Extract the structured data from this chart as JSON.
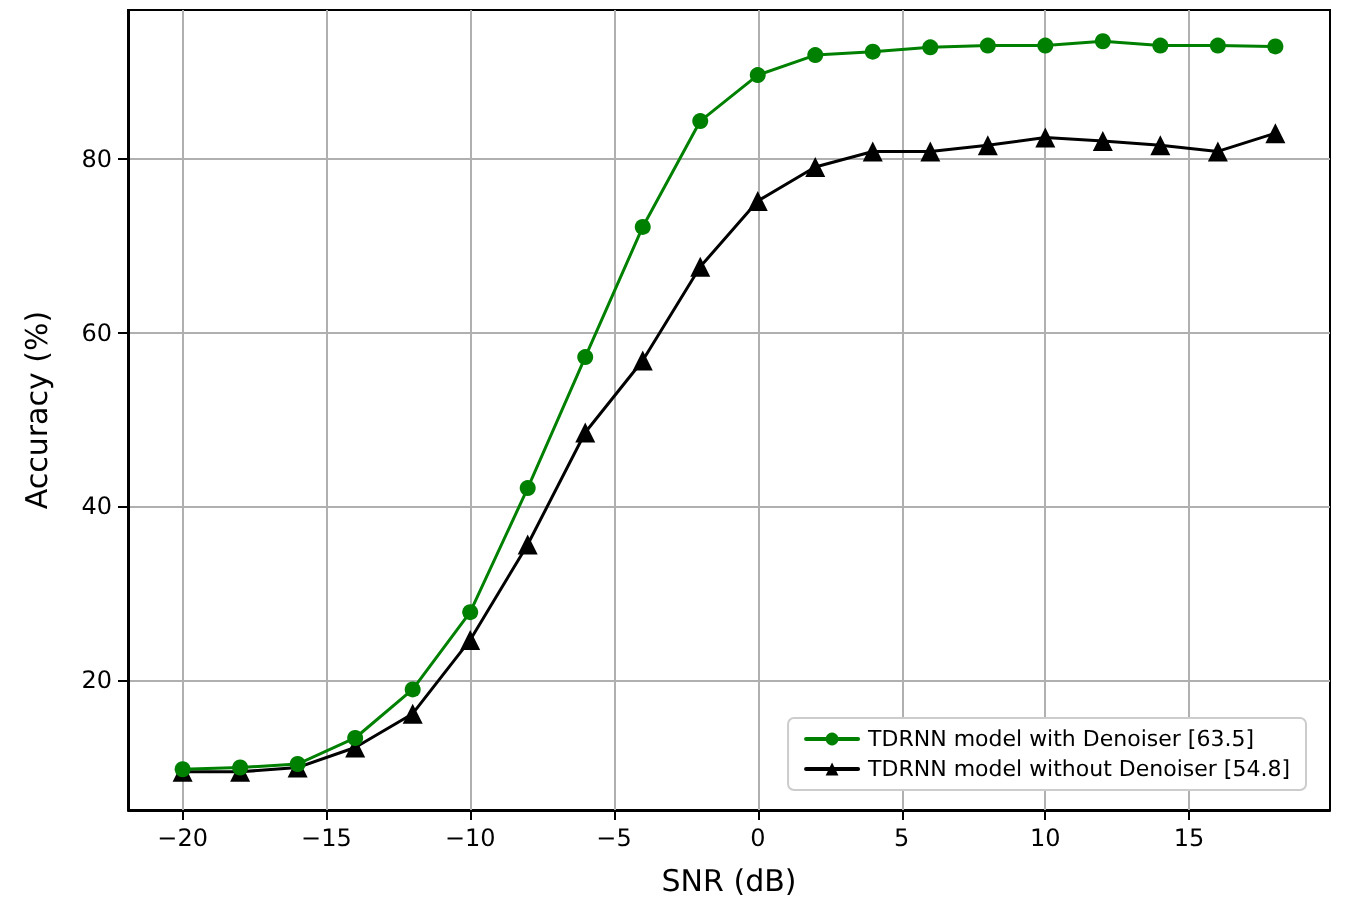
{
  "chart_data": {
    "type": "line",
    "xlabel": "SNR (dB)",
    "ylabel": "Accuracy (%)",
    "x": [
      -20,
      -18,
      -16,
      -14,
      -12,
      -10,
      -8,
      -6,
      -4,
      -2,
      0,
      2,
      4,
      6,
      8,
      10,
      12,
      14,
      16,
      18
    ],
    "xlim": [
      -21.9,
      19.9
    ],
    "xticks": [
      -20,
      -15,
      -10,
      -5,
      0,
      5,
      10,
      15
    ],
    "ylim": [
      5,
      97.2
    ],
    "yticks": [
      20,
      40,
      60,
      80
    ],
    "grid": true,
    "legend": "bottom right",
    "line_style": "solid",
    "series": [
      {
        "name": "TDRNN model with Denoiser [63.5]",
        "color": "#008000",
        "marker": "circle",
        "values": [
          9.7,
          9.9,
          10.3,
          13.3,
          18.9,
          27.8,
          42.1,
          57.2,
          72.2,
          84.4,
          89.7,
          92,
          92.4,
          92.9,
          93.1,
          93.1,
          93.6,
          93.1,
          93.1,
          93
        ]
      },
      {
        "name": "TDRNN model without Denoiser [54.8]",
        "color": "#000000",
        "marker": "triangle",
        "values": [
          9.4,
          9.4,
          9.9,
          12.2,
          16.1,
          24.6,
          35.6,
          48.5,
          56.8,
          67.6,
          75.2,
          79.1,
          80.9,
          80.9,
          81.6,
          82.5,
          82.1,
          81.6,
          80.9,
          83
        ]
      }
    ]
  }
}
